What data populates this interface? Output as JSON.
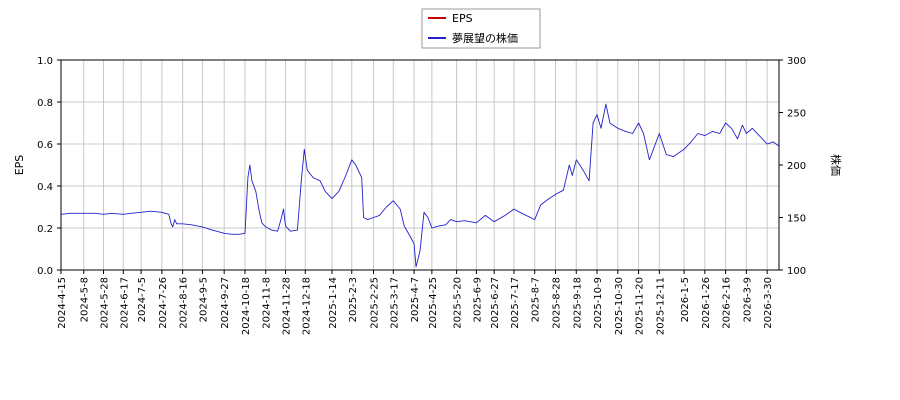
{
  "chart_data": {
    "type": "line",
    "legend": {
      "placement": "top-center",
      "entries": [
        "EPS",
        "夢展望の株価"
      ]
    },
    "left_axis": {
      "label": "EPS",
      "range": [
        0.0,
        1.0
      ],
      "ticks": [
        "0.0",
        "0.2",
        "0.4",
        "0.6",
        "0.8",
        "1.0"
      ]
    },
    "right_axis": {
      "label": "株価",
      "range": [
        100,
        300
      ],
      "ticks": [
        "100",
        "150",
        "200",
        "250",
        "300"
      ]
    },
    "x_axis": {
      "range": [
        "2024-04-15",
        "2026-04-11"
      ],
      "ticks": [
        "2024-4-15",
        "2024-5-8",
        "2024-5-28",
        "2024-6-17",
        "2024-7-5",
        "2024-7-26",
        "2024-8-16",
        "2024-9-5",
        "2024-9-27",
        "2024-10-18",
        "2024-11-8",
        "2024-11-28",
        "2024-12-18",
        "2025-1-14",
        "2025-2-3",
        "2025-2-25",
        "2025-3-17",
        "2025-4-7",
        "2025-4-25",
        "2025-5-20",
        "2025-6-9",
        "2025-6-27",
        "2025-7-17",
        "2025-8-7",
        "2025-8-28",
        "2025-9-18",
        "2025-10-9",
        "2025-10-30",
        "2025-11-20",
        "2025-12-11",
        "2026-1-5",
        "2026-1-26",
        "2026-2-16",
        "2026-3-9",
        "2026-3-30"
      ]
    },
    "grid": true,
    "series": [
      {
        "name": "EPS",
        "color": "#cc0000",
        "axis": "left",
        "points": []
      },
      {
        "name": "夢展望の株価",
        "color": "#2222cc",
        "axis": "right",
        "points": [
          [
            "2024-04-15",
            153
          ],
          [
            "2024-04-25",
            154
          ],
          [
            "2024-05-08",
            154
          ],
          [
            "2024-05-20",
            154
          ],
          [
            "2024-05-28",
            153
          ],
          [
            "2024-06-05",
            154
          ],
          [
            "2024-06-17",
            153
          ],
          [
            "2024-06-25",
            154
          ],
          [
            "2024-07-05",
            155
          ],
          [
            "2024-07-15",
            156
          ],
          [
            "2024-07-26",
            155
          ],
          [
            "2024-08-02",
            153
          ],
          [
            "2024-08-04",
            145
          ],
          [
            "2024-08-06",
            141
          ],
          [
            "2024-08-08",
            148
          ],
          [
            "2024-08-10",
            144
          ],
          [
            "2024-08-16",
            144
          ],
          [
            "2024-08-25",
            143
          ],
          [
            "2024-09-05",
            141
          ],
          [
            "2024-09-15",
            138
          ],
          [
            "2024-09-27",
            135
          ],
          [
            "2024-10-05",
            134
          ],
          [
            "2024-10-12",
            134
          ],
          [
            "2024-10-18",
            135
          ],
          [
            "2024-10-21",
            188
          ],
          [
            "2024-10-23",
            200
          ],
          [
            "2024-10-25",
            185
          ],
          [
            "2024-10-29",
            175
          ],
          [
            "2024-11-01",
            158
          ],
          [
            "2024-11-04",
            145
          ],
          [
            "2024-11-08",
            141
          ],
          [
            "2024-11-14",
            138
          ],
          [
            "2024-11-20",
            137
          ],
          [
            "2024-11-24",
            150
          ],
          [
            "2024-11-26",
            158
          ],
          [
            "2024-11-28",
            142
          ],
          [
            "2024-12-03",
            137
          ],
          [
            "2024-12-10",
            138
          ],
          [
            "2024-12-14",
            185
          ],
          [
            "2024-12-17",
            215
          ],
          [
            "2024-12-20",
            195
          ],
          [
            "2024-12-26",
            188
          ],
          [
            "2025-01-02",
            185
          ],
          [
            "2025-01-07",
            175
          ],
          [
            "2025-01-14",
            168
          ],
          [
            "2025-01-21",
            175
          ],
          [
            "2025-01-28",
            190
          ],
          [
            "2025-02-03",
            205
          ],
          [
            "2025-02-07",
            200
          ],
          [
            "2025-02-13",
            188
          ],
          [
            "2025-02-15",
            150
          ],
          [
            "2025-02-19",
            148
          ],
          [
            "2025-02-25",
            150
          ],
          [
            "2025-03-03",
            152
          ],
          [
            "2025-03-10",
            160
          ],
          [
            "2025-03-17",
            166
          ],
          [
            "2025-03-24",
            158
          ],
          [
            "2025-03-28",
            142
          ],
          [
            "2025-04-03",
            132
          ],
          [
            "2025-04-07",
            125
          ],
          [
            "2025-04-09",
            103
          ],
          [
            "2025-04-13",
            118
          ],
          [
            "2025-04-17",
            155
          ],
          [
            "2025-04-21",
            150
          ],
          [
            "2025-04-25",
            140
          ],
          [
            "2025-05-02",
            142
          ],
          [
            "2025-05-09",
            143
          ],
          [
            "2025-05-14",
            148
          ],
          [
            "2025-05-20",
            146
          ],
          [
            "2025-05-28",
            147
          ],
          [
            "2025-06-09",
            145
          ],
          [
            "2025-06-18",
            152
          ],
          [
            "2025-06-27",
            146
          ],
          [
            "2025-07-08",
            152
          ],
          [
            "2025-07-17",
            158
          ],
          [
            "2025-07-25",
            154
          ],
          [
            "2025-08-07",
            148
          ],
          [
            "2025-08-13",
            162
          ],
          [
            "2025-08-20",
            167
          ],
          [
            "2025-08-28",
            172
          ],
          [
            "2025-09-05",
            176
          ],
          [
            "2025-09-11",
            200
          ],
          [
            "2025-09-14",
            190
          ],
          [
            "2025-09-18",
            205
          ],
          [
            "2025-09-25",
            195
          ],
          [
            "2025-10-01",
            185
          ],
          [
            "2025-10-05",
            240
          ],
          [
            "2025-10-09",
            248
          ],
          [
            "2025-10-13",
            235
          ],
          [
            "2025-10-18",
            258
          ],
          [
            "2025-10-22",
            240
          ],
          [
            "2025-10-30",
            235
          ],
          [
            "2025-11-07",
            232
          ],
          [
            "2025-11-14",
            230
          ],
          [
            "2025-11-20",
            240
          ],
          [
            "2025-11-25",
            230
          ],
          [
            "2025-12-01",
            205
          ],
          [
            "2025-12-05",
            215
          ],
          [
            "2025-12-11",
            230
          ],
          [
            "2025-12-18",
            210
          ],
          [
            "2025-12-25",
            208
          ],
          [
            "2026-01-05",
            215
          ],
          [
            "2026-01-12",
            222
          ],
          [
            "2026-01-19",
            230
          ],
          [
            "2026-01-26",
            228
          ],
          [
            "2026-02-03",
            232
          ],
          [
            "2026-02-10",
            230
          ],
          [
            "2026-02-16",
            240
          ],
          [
            "2026-02-22",
            235
          ],
          [
            "2026-02-28",
            225
          ],
          [
            "2026-03-05",
            238
          ],
          [
            "2026-03-09",
            230
          ],
          [
            "2026-03-15",
            235
          ],
          [
            "2026-03-22",
            228
          ],
          [
            "2026-03-30",
            220
          ],
          [
            "2026-04-05",
            222
          ],
          [
            "2026-04-11",
            218
          ]
        ]
      }
    ]
  }
}
